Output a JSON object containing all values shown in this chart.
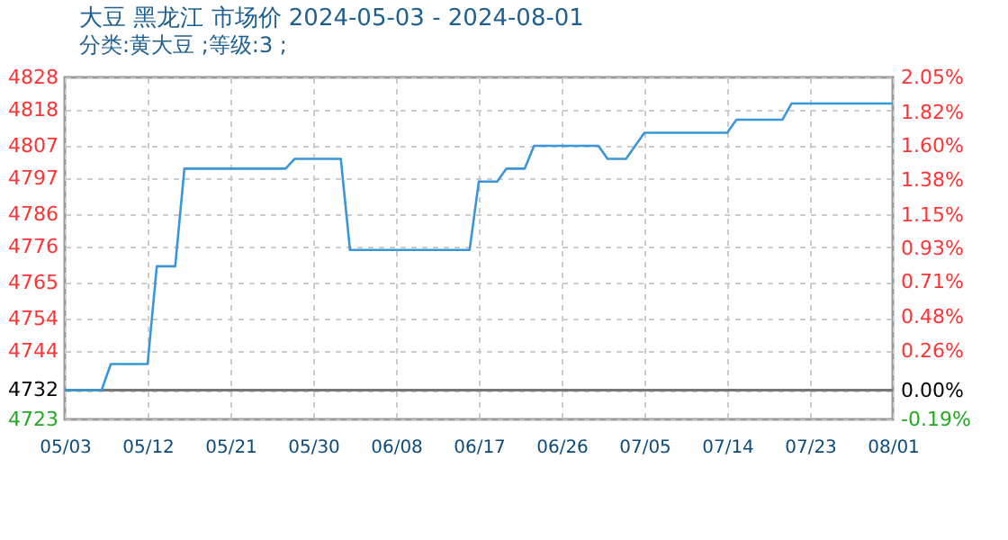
{
  "chart_data": {
    "type": "line",
    "title": "大豆 黑龙江 市场价 2024-05-03 - 2024-08-01",
    "subtitle": "分类:黄大豆 ;等级:3 ;",
    "x": [
      "2024-05-03",
      "2024-05-07",
      "2024-05-08",
      "2024-05-12",
      "2024-05-13",
      "2024-05-15",
      "2024-05-16",
      "2024-05-27",
      "2024-05-28",
      "2024-06-02",
      "2024-06-03",
      "2024-06-16",
      "2024-06-17",
      "2024-06-19",
      "2024-06-20",
      "2024-06-22",
      "2024-06-23",
      "2024-06-30",
      "2024-07-01",
      "2024-07-03",
      "2024-07-05",
      "2024-07-14",
      "2024-07-15",
      "2024-07-20",
      "2024-07-21",
      "2024-08-01"
    ],
    "series": [
      {
        "color": "#3a96d8",
        "values": [
          4732,
          4732,
          4740,
          4740,
          4770,
          4770,
          4800,
          4800,
          4803,
          4803,
          4775,
          4775,
          4796,
          4796,
          4800,
          4800,
          4807,
          4807,
          4803,
          4803,
          4811,
          4811,
          4815,
          4815,
          4820,
          4820
        ]
      }
    ],
    "xlim": [
      "2024-05-03",
      "2024-08-01"
    ],
    "xticks": [
      {
        "value": "2024-05-03",
        "label": "05/03"
      },
      {
        "value": "2024-05-12",
        "label": "05/12"
      },
      {
        "value": "2024-05-21",
        "label": "05/21"
      },
      {
        "value": "2024-05-30",
        "label": "05/30"
      },
      {
        "value": "2024-06-08",
        "label": "06/08"
      },
      {
        "value": "2024-06-17",
        "label": "06/17"
      },
      {
        "value": "2024-06-26",
        "label": "06/26"
      },
      {
        "value": "2024-07-05",
        "label": "07/05"
      },
      {
        "value": "2024-07-14",
        "label": "07/14"
      },
      {
        "value": "2024-07-23",
        "label": "07/23"
      },
      {
        "value": "2024-08-01",
        "label": "08/01"
      }
    ],
    "ylim": [
      4723,
      4828
    ],
    "yticks": [
      4723,
      4732,
      4744,
      4754,
      4765,
      4776,
      4786,
      4797,
      4807,
      4818,
      4828
    ],
    "y2lim": [
      -0.19,
      2.05
    ],
    "y2ticks": [
      {
        "value": -0.19,
        "label": "-0.19%"
      },
      {
        "value": 0,
        "label": "0.00%"
      },
      {
        "value": 0.26,
        "label": "0.26%"
      },
      {
        "value": 0.48,
        "label": "0.48%"
      },
      {
        "value": 0.71,
        "label": "0.71%"
      },
      {
        "value": 0.93,
        "label": "0.93%"
      },
      {
        "value": 1.15,
        "label": "1.15%"
      },
      {
        "value": 1.38,
        "label": "1.38%"
      },
      {
        "value": 1.6,
        "label": "1.60%"
      },
      {
        "value": 1.82,
        "label": "1.82%"
      },
      {
        "value": 2.05,
        "label": "2.05%"
      }
    ],
    "ref_lines": [
      {
        "axis": "y",
        "value": 4732,
        "color": "#777777"
      }
    ],
    "grid": true,
    "marker": "none",
    "line_style": "solid"
  }
}
